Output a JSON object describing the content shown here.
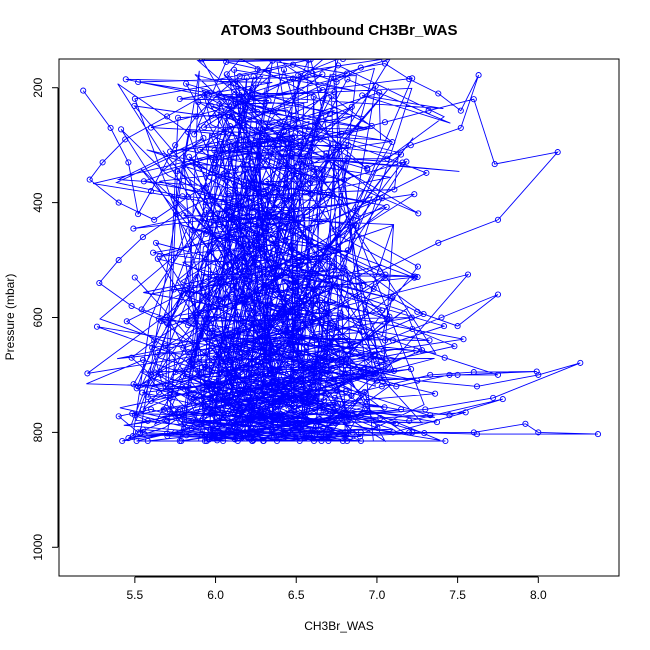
{
  "chart_data": {
    "type": "line",
    "title": "ATOM3 Southbound CH3Br_WAS",
    "xlabel": "CH3Br_WAS",
    "ylabel": "Pressure (mbar)",
    "xlim": [
      5.03,
      8.5
    ],
    "ylim": [
      1050,
      150
    ],
    "y_reversed": true,
    "grid": false,
    "legend": "none",
    "series_color": "#0000ff",
    "x_ticks": [
      "5.5",
      "6.0",
      "6.5",
      "7.0",
      "7.5",
      "8.0"
    ],
    "y_ticks": [
      "200",
      "400",
      "600",
      "800",
      "1000"
    ],
    "series": [
      {
        "values_note": "x = CH3Br_WAS, y = pressure in mbar; consecutive samples joined by line",
        "x": [
          5.18,
          5.35,
          5.46,
          5.52,
          5.6,
          5.75,
          5.88,
          6.02,
          6.15,
          6.33,
          6.48,
          6.6,
          6.75,
          6.9,
          7.05,
          7.2,
          7.38,
          7.52,
          7.63,
          7.52,
          7.21,
          6.94,
          6.65,
          6.4,
          6.18,
          5.95,
          5.7,
          5.44,
          5.3,
          5.22,
          5.4,
          5.62,
          5.83,
          6.05,
          6.27,
          6.52,
          6.78,
          7.05,
          7.32,
          7.6,
          7.73,
          8.12,
          7.75,
          7.38,
          7.02,
          6.71,
          6.45,
          6.2,
          5.97,
          5.76,
          5.55,
          5.4,
          5.28,
          5.48,
          5.7,
          5.95,
          6.2,
          6.47,
          6.73,
          6.98,
          7.25,
          7.5,
          7.75,
          7.4,
          7.05,
          6.72,
          6.4,
          6.1,
          5.85,
          5.62,
          5.48,
          5.6,
          5.83,
          6.1,
          6.37,
          6.65,
          6.93,
          7.22,
          7.48,
          7.0,
          6.7,
          6.42,
          6.15,
          5.9,
          5.66,
          5.52,
          5.68,
          5.95,
          6.22,
          6.5,
          6.78,
          7.1,
          7.42,
          7.75,
          7.45,
          7.12,
          6.8,
          6.5,
          6.22,
          5.95,
          5.72,
          5.55,
          5.65,
          5.9,
          6.18,
          6.45,
          6.74,
          7.03,
          7.33,
          7.6,
          7.99,
          7.5,
          7.0,
          6.6,
          6.25,
          5.95,
          5.72,
          5.6,
          5.78,
          6.02,
          6.3,
          6.6,
          6.92,
          7.25,
          7.62,
          8.0,
          8.26,
          7.72,
          7.3,
          6.9,
          6.55,
          6.25,
          5.98,
          5.75,
          5.58,
          5.5,
          5.68,
          5.95,
          6.25,
          6.55,
          6.85,
          7.15,
          7.45,
          7.78,
          7.2,
          6.85,
          6.52,
          6.22,
          5.95,
          5.7,
          5.52,
          5.4,
          5.6,
          5.85,
          6.12,
          6.42,
          6.72,
          7.02,
          7.33,
          7.55,
          7.1,
          6.7,
          6.35,
          6.02,
          5.75,
          5.55,
          5.46,
          5.7,
          5.98,
          6.28,
          6.58,
          6.9,
          7.22,
          7.6,
          7.92,
          8.0,
          8.37,
          7.62,
          7.2,
          6.8,
          6.45,
          6.12,
          5.82,
          5.56
        ],
        "y": [
          205,
          270,
          330,
          420,
          380,
          300,
          250,
          210,
          180,
          170,
          160,
          175,
          190,
          165,
          158,
          185,
          210,
          240,
          178,
          270,
          300,
          340,
          290,
          260,
          230,
          210,
          250,
          290,
          330,
          360,
          400,
          430,
          390,
          350,
          320,
          300,
          280,
          260,
          240,
          220,
          333,
          312,
          430,
          470,
          520,
          480,
          440,
          410,
          390,
          420,
          460,
          500,
          540,
          580,
          610,
          560,
          520,
          480,
          510,
          550,
          590,
          615,
          560,
          600,
          640,
          610,
          580,
          560,
          600,
          640,
          670,
          700,
          660,
          630,
          600,
          570,
          590,
          620,
          650,
          680,
          650,
          620,
          650,
          680,
          700,
          720,
          690,
          660,
          640,
          620,
          600,
          640,
          670,
          700,
          700,
          720,
          700,
          680,
          700,
          720,
          740,
          760,
          730,
          700,
          690,
          720,
          740,
          720,
          700,
          695,
          694,
          700,
          710,
          690,
          700,
          715,
          730,
          745,
          760,
          740,
          720,
          700,
          690,
          710,
          720,
          700,
          679,
          740,
          760,
          770,
          750,
          740,
          760,
          770,
          780,
          770,
          760,
          750,
          770,
          780,
          770,
          760,
          770,
          742,
          780,
          770,
          790,
          775,
          760,
          780,
          800,
          772,
          760,
          780,
          790,
          770,
          780,
          775,
          770,
          765,
          800,
          800,
          795,
          802,
          800,
          795,
          810,
          802,
          800,
          800,
          805,
          800,
          800,
          800,
          785,
          800,
          803,
          803,
          800,
          805,
          800,
          812,
          805,
          803
        ]
      }
    ],
    "background_segments_note": "dense overplotted sample tracks rendered procedurally below"
  }
}
